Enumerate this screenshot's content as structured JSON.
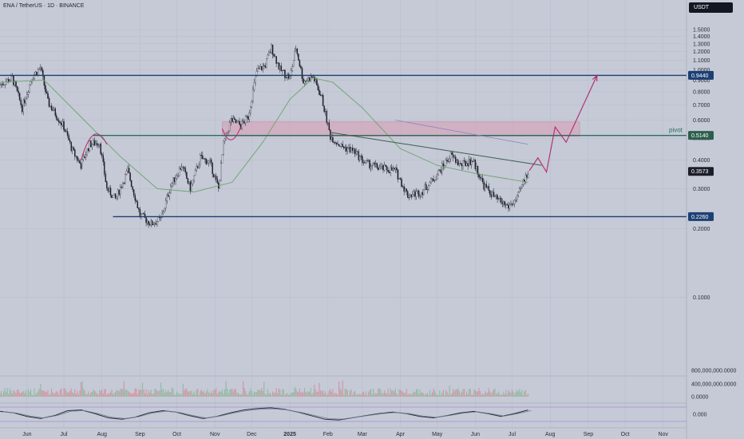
{
  "header": {
    "symbol_title": "ENA / TetherUS · 1D · BINANCE",
    "currency_button": "USDT"
  },
  "colors": {
    "background": "#c5cad6",
    "candle": "#1c1f2a",
    "ma": "#6fa36f",
    "level_line": "#1d3f73",
    "pivot_line": "#2e6e5e",
    "zone_fill": "#d99ab4",
    "projection": "#b3276e",
    "trendline": "#3c5e4a",
    "oscillator": "#2a2d38",
    "oscillator_signal": "#6f7f9b",
    "osc_bound": "#9b6cd8"
  },
  "chart_data": [
    {
      "type": "candlestick",
      "x_axis": {
        "type": "date",
        "range": [
          "2024-05-10",
          "2025-11-20"
        ],
        "tick_labels": [
          "Jun",
          "Jul",
          "Aug",
          "Sep",
          "Oct",
          "Nov",
          "Dec",
          "2025",
          "Feb",
          "Mar",
          "Apr",
          "May",
          "Jun",
          "Jul",
          "Aug",
          "Sep",
          "Oct",
          "Nov"
        ],
        "tick_dates": [
          "2024-06-01",
          "2024-07-01",
          "2024-08-01",
          "2024-09-01",
          "2024-10-01",
          "2024-11-01",
          "2024-12-01",
          "2025-01-01",
          "2025-02-01",
          "2025-03-01",
          "2025-04-01",
          "2025-05-01",
          "2025-06-01",
          "2025-07-01",
          "2025-08-01",
          "2025-09-01",
          "2025-10-01",
          "2025-11-01"
        ]
      },
      "y_axis": {
        "type": "log",
        "side": "right",
        "range": [
          0.08,
          1.75
        ],
        "tick_labels": [
          "1.5000",
          "1.4000",
          "1.3000",
          "1.2000",
          "1.1000",
          "1.0000",
          "0.9000",
          "0.8000",
          "0.7000",
          "0.6000",
          "0.5000",
          "0.4000",
          "0.3000",
          "0.2000",
          "0.1000"
        ],
        "tick_values": [
          1.5,
          1.4,
          1.3,
          1.2,
          1.1,
          1.0,
          0.9,
          0.8,
          0.7,
          0.6,
          0.5,
          0.4,
          0.3,
          0.2,
          0.1
        ]
      },
      "series_close": [
        {
          "date": "2024-05-10",
          "close": 0.86
        },
        {
          "date": "2024-05-20",
          "close": 0.92
        },
        {
          "date": "2024-05-28",
          "close": 0.68
        },
        {
          "date": "2024-06-05",
          "close": 0.93
        },
        {
          "date": "2024-06-12",
          "close": 1.02
        },
        {
          "date": "2024-06-18",
          "close": 0.72
        },
        {
          "date": "2024-07-01",
          "close": 0.56
        },
        {
          "date": "2024-07-08",
          "close": 0.44
        },
        {
          "date": "2024-07-15",
          "close": 0.38
        },
        {
          "date": "2024-07-22",
          "close": 0.47
        },
        {
          "date": "2024-07-30",
          "close": 0.48
        },
        {
          "date": "2024-08-05",
          "close": 0.3
        },
        {
          "date": "2024-08-12",
          "close": 0.27
        },
        {
          "date": "2024-08-22",
          "close": 0.36
        },
        {
          "date": "2024-09-01",
          "close": 0.23
        },
        {
          "date": "2024-09-10",
          "close": 0.21
        },
        {
          "date": "2024-09-18",
          "close": 0.22
        },
        {
          "date": "2024-09-26",
          "close": 0.31
        },
        {
          "date": "2024-10-05",
          "close": 0.38
        },
        {
          "date": "2024-10-12",
          "close": 0.3
        },
        {
          "date": "2024-10-20",
          "close": 0.41
        },
        {
          "date": "2024-10-28",
          "close": 0.39
        },
        {
          "date": "2024-11-04",
          "close": 0.3
        },
        {
          "date": "2024-11-08",
          "close": 0.47
        },
        {
          "date": "2024-11-14",
          "close": 0.6
        },
        {
          "date": "2024-11-22",
          "close": 0.57
        },
        {
          "date": "2024-11-28",
          "close": 0.62
        },
        {
          "date": "2024-12-05",
          "close": 0.98
        },
        {
          "date": "2024-12-12",
          "close": 1.05
        },
        {
          "date": "2024-12-17",
          "close": 1.25
        },
        {
          "date": "2024-12-24",
          "close": 1.0
        },
        {
          "date": "2025-01-01",
          "close": 0.92
        },
        {
          "date": "2025-01-06",
          "close": 1.25
        },
        {
          "date": "2025-01-12",
          "close": 0.89
        },
        {
          "date": "2025-01-20",
          "close": 0.93
        },
        {
          "date": "2025-01-27",
          "close": 0.75
        },
        {
          "date": "2025-02-03",
          "close": 0.51
        },
        {
          "date": "2025-02-12",
          "close": 0.46
        },
        {
          "date": "2025-02-22",
          "close": 0.44
        },
        {
          "date": "2025-03-03",
          "close": 0.39
        },
        {
          "date": "2025-03-15",
          "close": 0.37
        },
        {
          "date": "2025-03-28",
          "close": 0.36
        },
        {
          "date": "2025-04-07",
          "close": 0.28
        },
        {
          "date": "2025-04-18",
          "close": 0.29
        },
        {
          "date": "2025-04-28",
          "close": 0.33
        },
        {
          "date": "2025-05-12",
          "close": 0.42
        },
        {
          "date": "2025-05-20",
          "close": 0.38
        },
        {
          "date": "2025-05-30",
          "close": 0.4
        },
        {
          "date": "2025-06-08",
          "close": 0.31
        },
        {
          "date": "2025-06-18",
          "close": 0.27
        },
        {
          "date": "2025-06-28",
          "close": 0.25
        },
        {
          "date": "2025-07-05",
          "close": 0.27
        },
        {
          "date": "2025-07-10",
          "close": 0.32
        },
        {
          "date": "2025-07-14",
          "close": 0.3573
        }
      ],
      "moving_average": [
        {
          "date": "2024-05-10",
          "value": 0.88
        },
        {
          "date": "2024-06-15",
          "value": 0.9
        },
        {
          "date": "2024-07-15",
          "value": 0.62
        },
        {
          "date": "2024-08-15",
          "value": 0.42
        },
        {
          "date": "2024-09-15",
          "value": 0.3
        },
        {
          "date": "2024-10-15",
          "value": 0.29
        },
        {
          "date": "2024-11-15",
          "value": 0.32
        },
        {
          "date": "2024-12-10",
          "value": 0.48
        },
        {
          "date": "2025-01-01",
          "value": 0.74
        },
        {
          "date": "2025-01-20",
          "value": 0.92
        },
        {
          "date": "2025-02-05",
          "value": 0.88
        },
        {
          "date": "2025-03-01",
          "value": 0.68
        },
        {
          "date": "2025-04-01",
          "value": 0.45
        },
        {
          "date": "2025-05-01",
          "value": 0.38
        },
        {
          "date": "2025-06-01",
          "value": 0.35
        },
        {
          "date": "2025-07-14",
          "value": 0.32
        }
      ],
      "levels": [
        {
          "value": 0.944,
          "label": "0.9440",
          "start": "2024-05-10"
        },
        {
          "value": 0.514,
          "label": "0.5140",
          "start": "2024-07-25",
          "name": "pivot"
        },
        {
          "value": 0.226,
          "label": "0.2260",
          "start": "2024-08-10"
        }
      ],
      "zone": {
        "start": "2024-11-07",
        "end": "2025-08-25",
        "low": 0.51,
        "high": 0.59
      },
      "trendline": {
        "start_date": "2025-02-03",
        "start_value": 0.53,
        "end_date": "2025-07-25",
        "end_value": 0.38
      },
      "ma_line_2": {
        "start_date": "2025-03-28",
        "start_value": 0.6,
        "end_date": "2025-07-14",
        "end_value": 0.47
      },
      "projection_path": [
        {
          "date": "2025-07-15",
          "value": 0.36
        },
        {
          "date": "2025-07-22",
          "value": 0.41
        },
        {
          "date": "2025-07-29",
          "value": 0.355
        },
        {
          "date": "2025-08-05",
          "value": 0.56
        },
        {
          "date": "2025-08-14",
          "value": 0.48
        },
        {
          "date": "2025-09-08",
          "value": 0.94
        }
      ],
      "arcs": [
        {
          "start": "2024-07-15",
          "peak": "2024-07-25",
          "end": "2024-08-05",
          "peak_value": 0.56,
          "end_value": 0.47
        },
        {
          "start": "2024-11-07",
          "low": "2024-11-14",
          "end": "2024-11-22",
          "low_value": 0.48,
          "end_value": 0.56
        }
      ],
      "price_labels": [
        "0.9440",
        "0.5140",
        "0.3573",
        "0.2260"
      ],
      "annotation": "pivot"
    },
    {
      "type": "bar",
      "name": "volume",
      "y_axis": {
        "side": "right",
        "tick_labels": [
          "800,000,000.0000",
          "400,000,000.0000",
          "0.0000"
        ],
        "tick_values": [
          800000000,
          400000000,
          0
        ]
      }
    },
    {
      "type": "line",
      "name": "oscillator",
      "y_axis": {
        "side": "right",
        "tick_labels": [
          "0.000"
        ],
        "tick_values": [
          0
        ]
      },
      "values": [
        0.4,
        0.2,
        -0.3,
        -0.6,
        -0.2,
        0.5,
        0.6,
        0.1,
        -0.5,
        -0.7,
        -0.4,
        0.2,
        0.5,
        0.3,
        -0.2,
        -0.6,
        -0.3,
        0.2,
        0.6,
        0.8,
        0.9,
        0.7,
        0.3,
        -0.2,
        -0.7,
        -0.8,
        -0.5,
        -0.2,
        0.1,
        0.3,
        0.1,
        -0.3,
        -0.5,
        -0.2,
        0.2,
        0.4,
        0.1,
        -0.3,
        0.1,
        0.6
      ]
    }
  ]
}
